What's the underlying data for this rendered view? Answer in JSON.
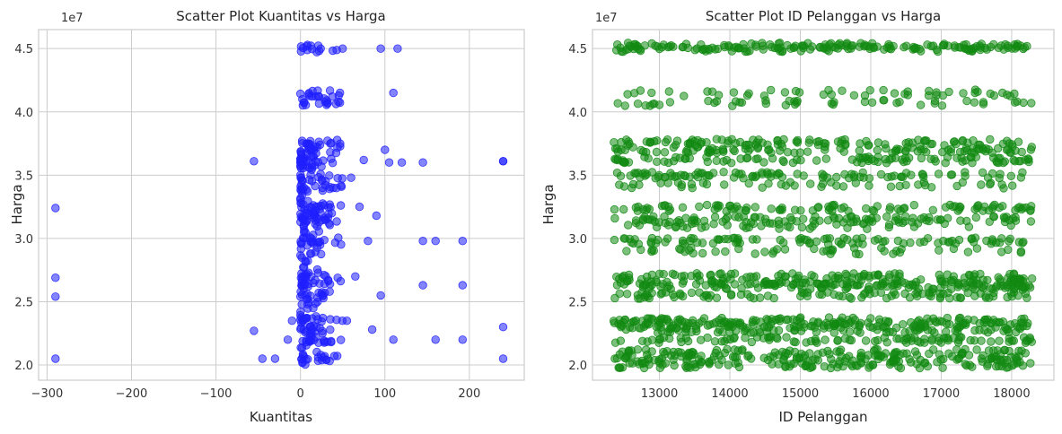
{
  "chart_data": [
    {
      "type": "scatter",
      "title": "Scatter Plot Kuantitas vs Harga",
      "xlabel": "Kuantitas",
      "ylabel": "Harga",
      "y_offset_label": "1e7",
      "xlim": [
        -310,
        265
      ],
      "ylim": [
        1.88,
        4.65
      ],
      "y_scale": 10000000,
      "xticks": [
        -300,
        -200,
        -100,
        0,
        100,
        200
      ],
      "yticks": [
        2.0,
        2.5,
        3.0,
        3.5,
        4.0,
        4.5
      ],
      "xtick_labels": [
        "−300",
        "−200",
        "−100",
        "0",
        "100",
        "200"
      ],
      "ytick_labels": [
        "2.0",
        "2.5",
        "3.0",
        "3.5",
        "4.0",
        "4.5"
      ],
      "grid": true,
      "color": "#1f1fff",
      "levels_1e7": [
        2.05,
        2.2,
        2.28,
        2.35,
        2.55,
        2.65,
        2.7,
        2.98,
        3.12,
        3.18,
        3.25,
        3.4,
        3.48,
        3.62,
        3.7,
        3.75,
        4.08,
        4.15,
        4.5
      ],
      "dense_x_range": [
        0,
        50
      ],
      "series": [
        {
          "x": [
            -290,
            -290,
            -290,
            -290,
            -55,
            -55,
            -45,
            -30,
            -15,
            -10,
            95,
            100,
            105,
            110,
            115,
            120,
            145,
            145,
            160,
            160,
            192,
            192,
            192,
            240,
            240,
            240,
            240,
            75,
            80,
            85,
            90,
            95,
            60,
            65,
            70,
            55,
            50,
            45,
            110,
            145
          ],
          "y": [
            3.24,
            2.69,
            2.54,
            2.05,
            3.61,
            2.27,
            2.05,
            2.05,
            2.2,
            2.35,
            4.5,
            3.7,
            3.6,
            4.15,
            4.5,
            3.6,
            3.6,
            2.98,
            2.98,
            2.2,
            2.98,
            2.63,
            2.2,
            3.61,
            3.61,
            2.3,
            2.05,
            3.62,
            2.98,
            2.28,
            3.18,
            2.55,
            3.48,
            2.7,
            3.25,
            2.35,
            4.5,
            4.08,
            2.2,
            2.63
          ]
        }
      ]
    },
    {
      "type": "scatter",
      "title": "Scatter Plot ID Pelanggan vs Harga",
      "xlabel": "ID Pelanggan",
      "ylabel": "Harga",
      "y_offset_label": "1e7",
      "xlim": [
        12050,
        18600
      ],
      "ylim": [
        1.88,
        4.65
      ],
      "y_scale": 10000000,
      "xticks": [
        13000,
        14000,
        15000,
        16000,
        17000,
        18000
      ],
      "yticks": [
        2.0,
        2.5,
        3.0,
        3.5,
        4.0,
        4.5
      ],
      "xtick_labels": [
        "13000",
        "14000",
        "15000",
        "16000",
        "17000",
        "18000"
      ],
      "ytick_labels": [
        "2.0",
        "2.5",
        "3.0",
        "3.5",
        "4.0",
        "4.5"
      ],
      "grid": true,
      "color": "#128a12",
      "x_range": [
        12350,
        18290
      ],
      "levels_1e7": [
        2.0,
        2.05,
        2.1,
        2.2,
        2.28,
        2.32,
        2.35,
        2.55,
        2.62,
        2.65,
        2.7,
        2.9,
        2.98,
        3.1,
        3.15,
        3.24,
        3.42,
        3.5,
        3.62,
        3.7,
        3.76,
        4.07,
        4.15,
        4.5,
        4.52
      ]
    }
  ]
}
